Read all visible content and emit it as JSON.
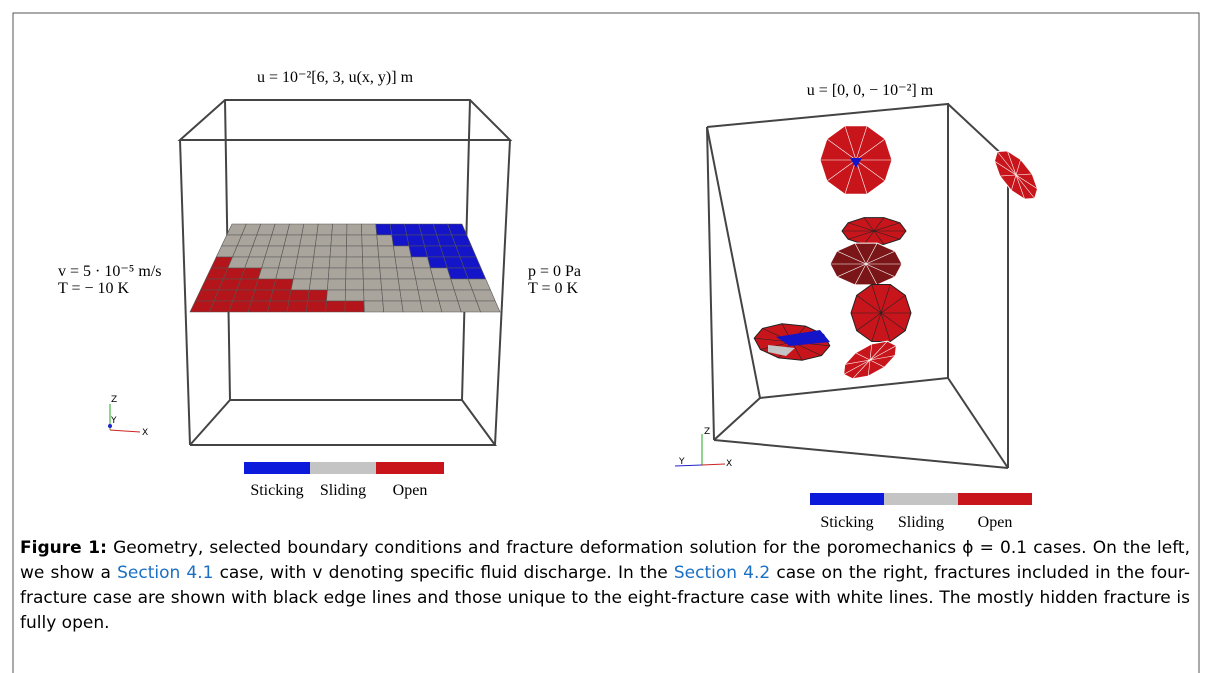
{
  "left_panel": {
    "top_label": "u = 10⁻²[6, 3, u(x, y)] m",
    "left_labels": [
      "v = 5 · 10⁻⁵ m/s",
      "T = − 10 K"
    ],
    "right_labels": [
      "p = 0 Pa",
      "T = 0 K"
    ],
    "axes": [
      "Z",
      "Y",
      "X"
    ],
    "legend": [
      "Sticking",
      "Sliding",
      "Open"
    ]
  },
  "right_panel": {
    "top_label": "u = [0, 0, − 10⁻²] m",
    "axes": [
      "Z",
      "Y",
      "X"
    ],
    "legend": [
      "Sticking",
      "Sliding",
      "Open"
    ]
  },
  "caption": {
    "label": "Figure 1:",
    "text_1": " Geometry, selected boundary conditions and fracture deformation solution for the poromechanics ϕ = 0.1 cases. On the left, we show a ",
    "link_1": "Section 4.1",
    "text_2": " case, with v denoting specific fluid discharge. In the ",
    "link_2": "Section 4.2",
    "text_3": " case on the right, fractures included in the four-fracture case are shown with black edge lines and those unique to the eight-fracture case with white lines. The mostly hidden fracture is fully open."
  }
}
